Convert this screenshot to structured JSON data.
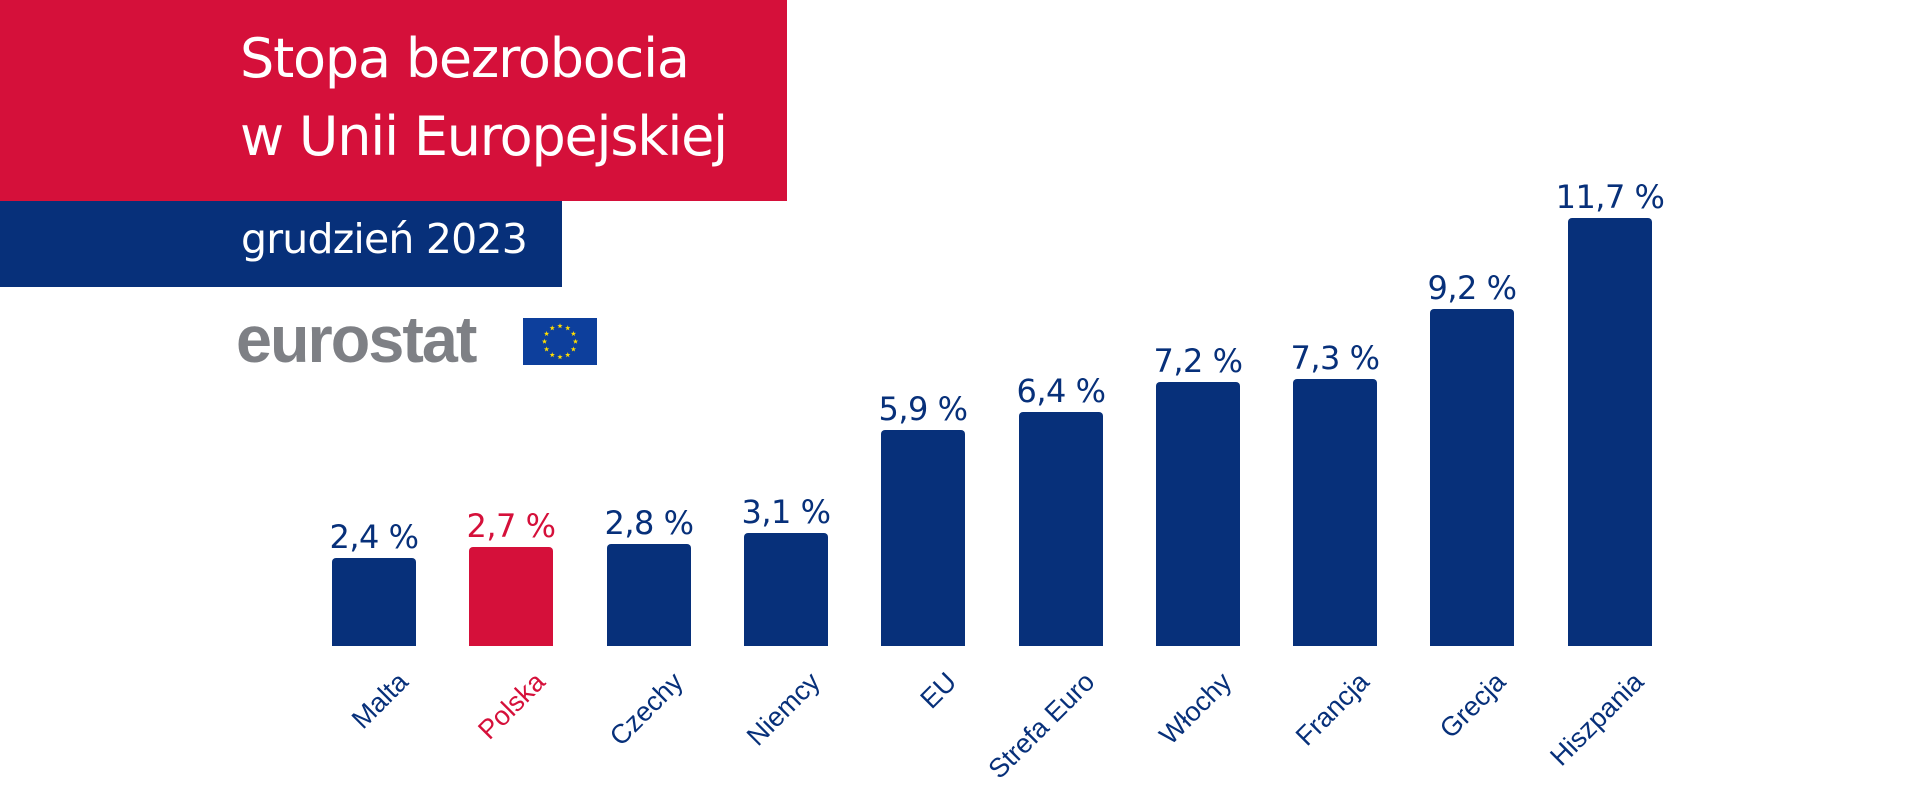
{
  "header": {
    "title_line1": "Stopa bezrobocia",
    "title_line2": "w Unii Europejskiej",
    "date": "grudzień 2023",
    "colors": {
      "title_bg": "#d5103a",
      "date_bg": "#07307a",
      "text": "#ffffff"
    }
  },
  "logo": {
    "text": "eurostat",
    "flag_icon": "eu-flag-icon",
    "colors": {
      "text": "#7e8085",
      "flag_bg": "#0d3f9c",
      "stars": "#ffdd00"
    }
  },
  "colors": {
    "bar_default": "#07307a",
    "bar_highlight": "#d5103a"
  },
  "chart_data": {
    "type": "bar",
    "title": "Stopa bezrobocia w Unii Europejskiej",
    "subtitle": "grudzień 2023",
    "source": "eurostat",
    "xlabel": "",
    "ylabel": "",
    "unit": "%",
    "ylim": [
      0,
      12
    ],
    "grid": false,
    "legend": null,
    "highlighted_category": "Polska",
    "categories": [
      "Malta",
      "Polska",
      "Czechy",
      "Niemcy",
      "EU",
      "Strefa Euro",
      "Włochy",
      "Francja",
      "Grecja",
      "Hiszpania"
    ],
    "values": [
      2.4,
      2.7,
      2.8,
      3.1,
      5.9,
      6.4,
      7.2,
      7.3,
      9.2,
      11.7
    ],
    "value_labels": [
      "2,4 %",
      "2,7 %",
      "2,8 %",
      "3,1 %",
      "5,9 %",
      "6,4 %",
      "7,2 %",
      "7,3 %",
      "9,2 %",
      "11,7 %"
    ]
  }
}
